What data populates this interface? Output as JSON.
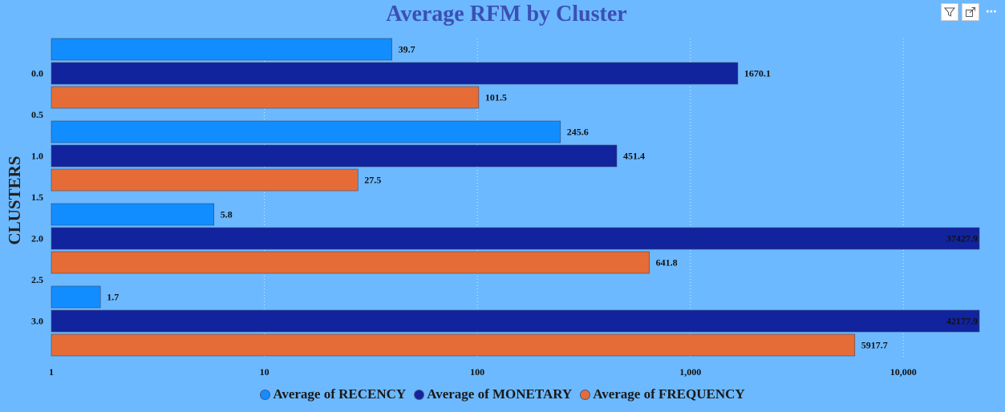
{
  "toolbar": {
    "icons": [
      "filter-icon",
      "focus-mode-icon",
      "more-options-icon"
    ],
    "more_label": "⋯"
  },
  "chart_data": {
    "type": "bar",
    "orientation": "horizontal",
    "title": "Average RFM by Cluster",
    "ylabel": "CLUSTERS",
    "xlabel": "",
    "xscale": "log",
    "xlim": [
      1,
      30000
    ],
    "xticks": [
      1,
      10,
      100,
      1000,
      10000
    ],
    "xtick_labels": [
      "1",
      "10",
      "100",
      "1,000",
      "10,000"
    ],
    "ylim": [
      -0.5,
      3.5
    ],
    "yticks": [
      0.0,
      0.5,
      1.0,
      1.5,
      2.0,
      2.5,
      3.0
    ],
    "ytick_labels": [
      "0.0",
      "0.5",
      "1.0",
      "1.5",
      "2.0",
      "2.5",
      "3.0"
    ],
    "categories": [
      0.0,
      1.0,
      2.0,
      3.0
    ],
    "series": [
      {
        "name": "Average of RECENCY",
        "color": "#118dff",
        "values": [
          39.7,
          245.6,
          5.8,
          1.7
        ],
        "labels": [
          "39.7",
          "245.6",
          "5.8",
          "1.7"
        ]
      },
      {
        "name": "Average of MONETARY",
        "color": "#12239e",
        "values": [
          1670.1,
          451.4,
          37427.9,
          42177.9
        ],
        "labels": [
          "1670.1",
          "451.4",
          "37427.9",
          "42177.9"
        ]
      },
      {
        "name": "Average of FREQUENCY",
        "color": "#e66c37",
        "values": [
          101.5,
          27.5,
          641.8,
          5917.7
        ],
        "labels": [
          "101.5",
          "27.5",
          "641.8",
          "5917.7"
        ]
      }
    ],
    "grid": true,
    "legend_position": "bottom",
    "background": "#6cb9ff"
  }
}
